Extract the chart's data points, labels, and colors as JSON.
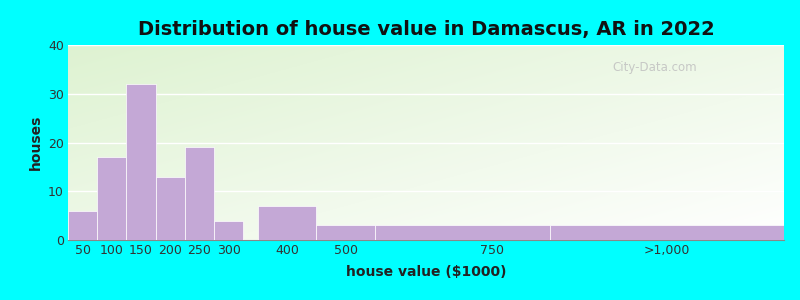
{
  "title": "Distribution of house value in Damascus, AR in 2022",
  "xlabel": "house value ($1000)",
  "ylabel": "houses",
  "bar_color": "#c4a8d6",
  "background_outer": "#00ffff",
  "ylim": [
    0,
    40
  ],
  "yticks": [
    0,
    10,
    20,
    30,
    40
  ],
  "tick_labels": [
    "50",
    "100",
    "150",
    "200",
    "250",
    "300",
    "400",
    "500",
    "750",
    ">1,000"
  ],
  "tick_positions": [
    50,
    100,
    150,
    200,
    250,
    300,
    400,
    500,
    750,
    1050
  ],
  "bar_lefts": [
    25,
    75,
    125,
    175,
    225,
    275,
    350,
    450,
    550,
    850
  ],
  "bar_rights": [
    75,
    125,
    175,
    225,
    275,
    325,
    450,
    550,
    850,
    1250
  ],
  "values": [
    6,
    17,
    32,
    13,
    19,
    4,
    7,
    3,
    3,
    3
  ],
  "title_fontsize": 14,
  "axis_label_fontsize": 10,
  "tick_fontsize": 9,
  "watermark_text": "City-Data.com"
}
